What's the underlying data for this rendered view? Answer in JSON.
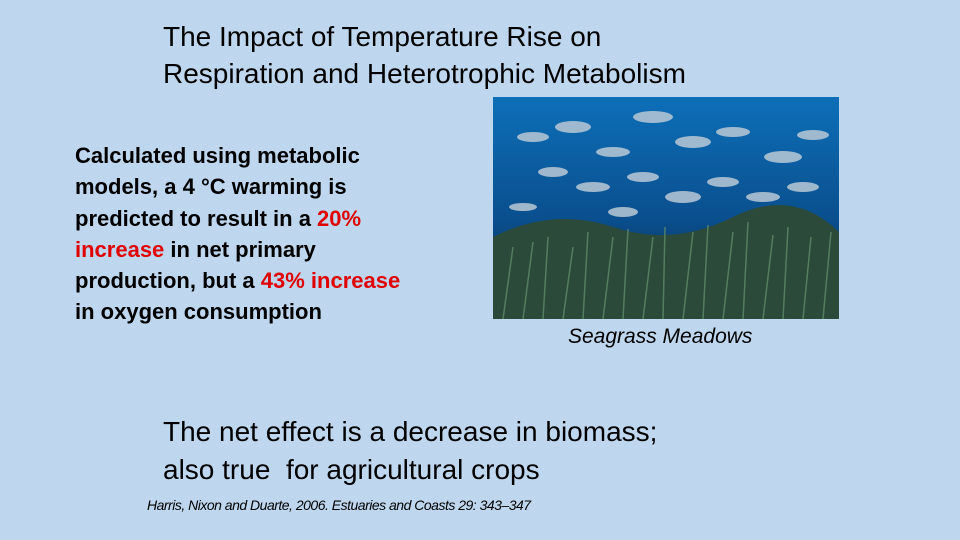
{
  "slide": {
    "title": {
      "lines": [
        "The Impact of Temperature Rise on",
        "Respiration and Heterotrophic Metabolism"
      ]
    },
    "body": {
      "lines": [
        [
          {
            "text": "Calculated using metabolic",
            "color": "#000000"
          }
        ],
        [
          {
            "text": "models, a 4 °C warming is",
            "color": "#000000"
          }
        ],
        [
          {
            "text": "predicted to result in a ",
            "color": "#000000"
          },
          {
            "text": "20%",
            "color": "#e00000"
          }
        ],
        [
          {
            "text": "increase",
            "color": "#e00000"
          },
          {
            "text": " in net primary",
            "color": "#000000"
          }
        ],
        [
          {
            "text": "production, but a ",
            "color": "#000000"
          },
          {
            "text": "43% increase",
            "color": "#e00000"
          }
        ],
        [
          {
            "text": "in oxygen consumption",
            "color": "#000000"
          }
        ]
      ]
    },
    "image": {
      "caption": "Seagrass Meadows"
    },
    "conclusion": {
      "lines": [
        "The net effect is a decrease in biomass;",
        "also true  for agricultural crops"
      ]
    },
    "citation": "Harris, Nixon and Duarte, 2006. Estuaries and Coasts 29: 343–347"
  }
}
